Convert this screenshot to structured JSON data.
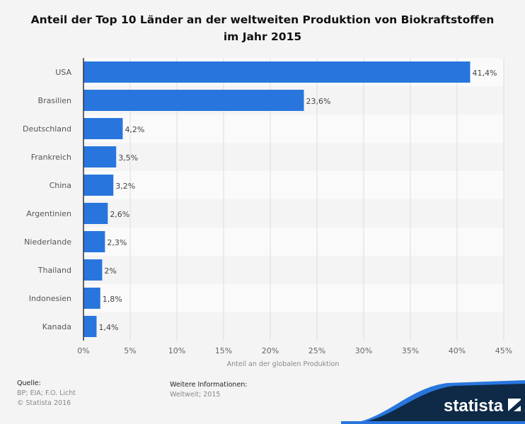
{
  "chart_data": {
    "type": "bar",
    "orientation": "horizontal",
    "title": "Anteil der Top 10 Länder an der weltweiten Produktion von Biokraftstoffen im Jahr 2015",
    "title_lines": [
      "Anteil der Top 10 Länder an der weltweiten Produktion von Biokraftstoffen",
      "im Jahr 2015"
    ],
    "categories": [
      "USA",
      "Brasilien",
      "Deutschland",
      "Frankreich",
      "China",
      "Argentinien",
      "Niederlande",
      "Thailand",
      "Indonesien",
      "Kanada"
    ],
    "values": [
      41.4,
      23.6,
      4.2,
      3.5,
      3.2,
      2.6,
      2.3,
      2,
      1.8,
      1.4
    ],
    "value_labels": [
      "41,4%",
      "23,6%",
      "4,2%",
      "3,5%",
      "3,2%",
      "2,6%",
      "2,3%",
      "2%",
      "1,8%",
      "1,4%"
    ],
    "xlabel": "Anteil an der globalen Produktion",
    "ylabel": "",
    "xlim": [
      0,
      45
    ],
    "xticks": [
      0,
      5,
      10,
      15,
      20,
      25,
      30,
      35,
      40,
      45
    ],
    "xtick_labels": [
      "0%",
      "5%",
      "10%",
      "15%",
      "20%",
      "25%",
      "30%",
      "35%",
      "40%",
      "45%"
    ],
    "grid": true,
    "bar_color": "#2876dd"
  },
  "footer": {
    "source_heading": "Quelle:",
    "source": "BP; EIA; F.O. Licht",
    "copyright": "© Statista 2016",
    "info_heading": "Weitere Informationen:",
    "info": "Weltweit; 2015",
    "logo": "statista"
  }
}
